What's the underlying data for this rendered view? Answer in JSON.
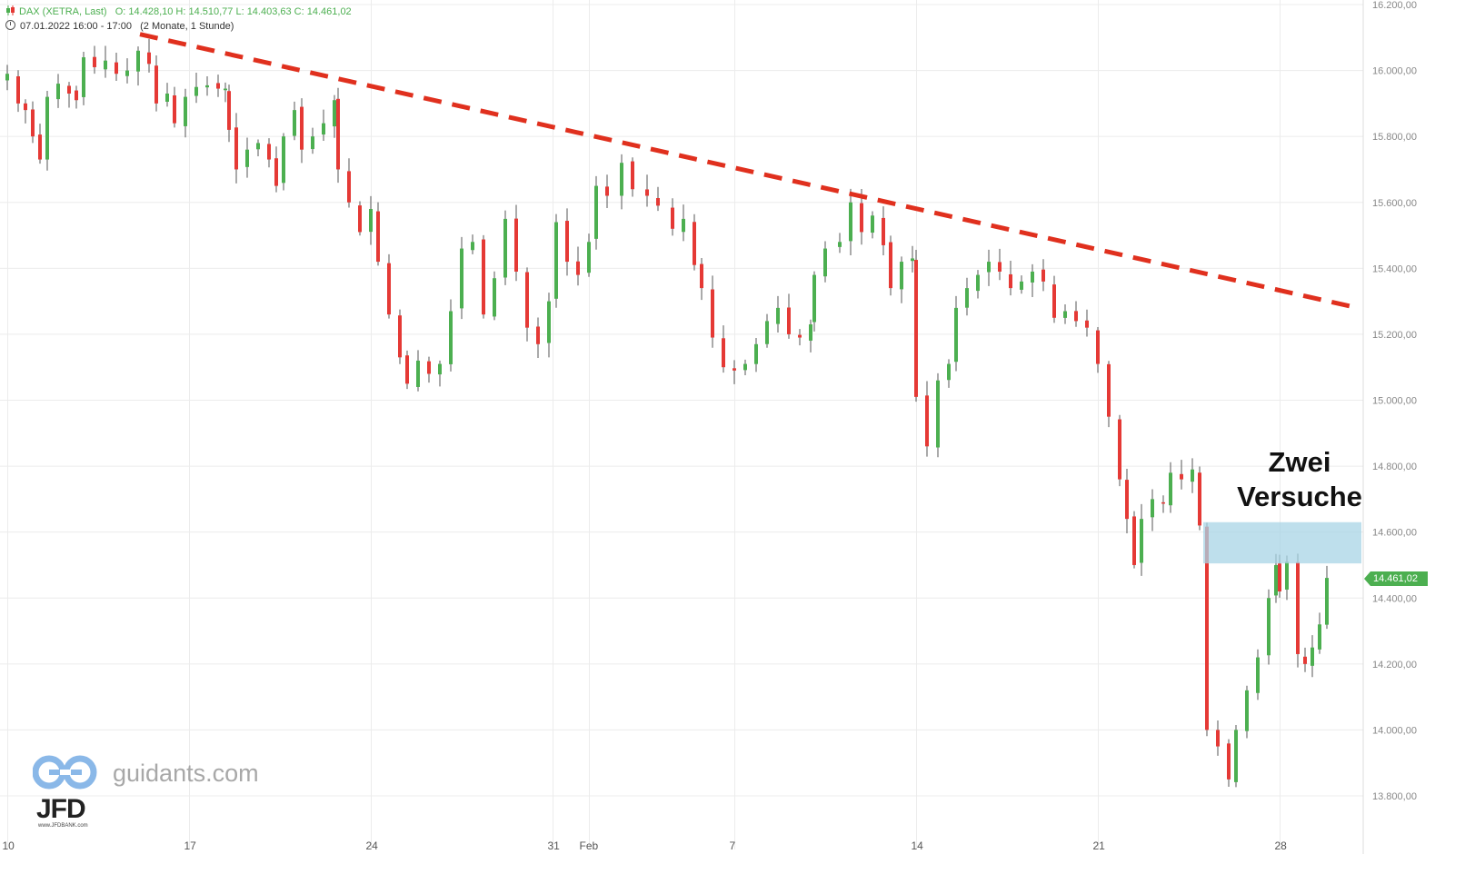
{
  "header": {
    "instrument": "DAX (XETRA, Last)",
    "ohlc": "O: 14.428,10  H: 14.510,77  L: 14.403,63  C: 14.461,02",
    "period": "07.01.2022 16:00 - 17:00",
    "range": "(2 Monate, 1 Stunde)"
  },
  "annotation": {
    "line1": "Zwei",
    "line2": "Versuche"
  },
  "last_price_label": "14.461,02",
  "watermark": {
    "site": "guidants.com",
    "brand": "JFD",
    "brand_sub": "www.JFDBANK.com"
  },
  "colors": {
    "up": "#4caf50",
    "down": "#e53935",
    "trend": "#e0301e",
    "zone": "#a8d4e6",
    "grid": "#ececec"
  },
  "chart_data": {
    "type": "candlestick",
    "title": "",
    "y_axis": {
      "min": 13750,
      "max": 16200,
      "ticks": [
        16200,
        16000,
        15800,
        15600,
        15400,
        15200,
        15000,
        14800,
        14600,
        14400,
        14200,
        14000,
        13800
      ],
      "tick_labels": [
        "16.200,00",
        "16.000,00",
        "15.800,00",
        "15.600,00",
        "15.400,00",
        "15.200,00",
        "15.000,00",
        "14.800,00",
        "14.600,00",
        "14.400,00",
        "14.200,00",
        "14.000,00",
        "13.800,00"
      ],
      "position": "right"
    },
    "x_axis": {
      "ticks": [
        {
          "label": "10",
          "t": 0
        },
        {
          "label": "17",
          "t": 5
        },
        {
          "label": "24",
          "t": 10
        },
        {
          "label": "31",
          "t": 15
        },
        {
          "label": "Feb",
          "t": 16
        },
        {
          "label": "7",
          "t": 20
        },
        {
          "label": "14",
          "t": 25
        },
        {
          "label": "21",
          "t": 30
        },
        {
          "label": "28",
          "t": 35
        }
      ],
      "max_t": 37.3
    },
    "trendline": {
      "from": {
        "t": 3.65,
        "price": 16110
      },
      "to": {
        "t": 36.95,
        "price": 15285
      },
      "style": "dashed"
    },
    "zone": {
      "t_start": 32.9,
      "t_end": 37.25,
      "price_low": 14505,
      "price_high": 14630
    },
    "last_price": 14461.02,
    "closes": [
      {
        "t": 0.0,
        "c": 15990
      },
      {
        "t": 0.3,
        "c": 15900
      },
      {
        "t": 0.5,
        "c": 15880
      },
      {
        "t": 0.7,
        "c": 15800
      },
      {
        "t": 0.9,
        "c": 15730
      },
      {
        "t": 1.1,
        "c": 15920
      },
      {
        "t": 1.4,
        "c": 15960
      },
      {
        "t": 1.7,
        "c": 15930
      },
      {
        "t": 1.9,
        "c": 15910
      },
      {
        "t": 2.1,
        "c": 16040
      },
      {
        "t": 2.4,
        "c": 16010
      },
      {
        "t": 2.7,
        "c": 16030
      },
      {
        "t": 3.0,
        "c": 15990
      },
      {
        "t": 3.3,
        "c": 16000
      },
      {
        "t": 3.6,
        "c": 16060
      },
      {
        "t": 3.9,
        "c": 16020
      },
      {
        "t": 4.1,
        "c": 15900
      },
      {
        "t": 4.4,
        "c": 15930
      },
      {
        "t": 4.6,
        "c": 15840
      },
      {
        "t": 4.9,
        "c": 15920
      },
      {
        "t": 5.2,
        "c": 15950
      },
      {
        "t": 5.5,
        "c": 15955
      },
      {
        "t": 5.8,
        "c": 15945
      },
      {
        "t": 6.0,
        "c": 15945
      },
      {
        "t": 6.1,
        "c": 15820
      },
      {
        "t": 6.3,
        "c": 15700
      },
      {
        "t": 6.6,
        "c": 15760
      },
      {
        "t": 6.9,
        "c": 15780
      },
      {
        "t": 7.2,
        "c": 15730
      },
      {
        "t": 7.4,
        "c": 15650
      },
      {
        "t": 7.6,
        "c": 15800
      },
      {
        "t": 7.9,
        "c": 15880
      },
      {
        "t": 8.1,
        "c": 15760
      },
      {
        "t": 8.4,
        "c": 15800
      },
      {
        "t": 8.7,
        "c": 15840
      },
      {
        "t": 9.0,
        "c": 15910
      },
      {
        "t": 9.1,
        "c": 15700
      },
      {
        "t": 9.4,
        "c": 15600
      },
      {
        "t": 9.7,
        "c": 15510
      },
      {
        "t": 10.0,
        "c": 15580
      },
      {
        "t": 10.2,
        "c": 15420
      },
      {
        "t": 10.5,
        "c": 15260
      },
      {
        "t": 10.8,
        "c": 15130
      },
      {
        "t": 11.0,
        "c": 15050
      },
      {
        "t": 11.3,
        "c": 15120
      },
      {
        "t": 11.6,
        "c": 15080
      },
      {
        "t": 11.9,
        "c": 15110
      },
      {
        "t": 12.2,
        "c": 15270
      },
      {
        "t": 12.5,
        "c": 15460
      },
      {
        "t": 12.8,
        "c": 15480
      },
      {
        "t": 13.1,
        "c": 15260
      },
      {
        "t": 13.4,
        "c": 15370
      },
      {
        "t": 13.7,
        "c": 15550
      },
      {
        "t": 14.0,
        "c": 15390
      },
      {
        "t": 14.3,
        "c": 15220
      },
      {
        "t": 14.6,
        "c": 15170
      },
      {
        "t": 14.9,
        "c": 15300
      },
      {
        "t": 15.1,
        "c": 15540
      },
      {
        "t": 15.4,
        "c": 15420
      },
      {
        "t": 15.7,
        "c": 15380
      },
      {
        "t": 16.0,
        "c": 15480
      },
      {
        "t": 16.2,
        "c": 15650
      },
      {
        "t": 16.5,
        "c": 15620
      },
      {
        "t": 16.9,
        "c": 15720
      },
      {
        "t": 17.2,
        "c": 15640
      },
      {
        "t": 17.6,
        "c": 15620
      },
      {
        "t": 17.9,
        "c": 15590
      },
      {
        "t": 18.3,
        "c": 15520
      },
      {
        "t": 18.6,
        "c": 15550
      },
      {
        "t": 18.9,
        "c": 15410
      },
      {
        "t": 19.1,
        "c": 15340
      },
      {
        "t": 19.4,
        "c": 15190
      },
      {
        "t": 19.7,
        "c": 15100
      },
      {
        "t": 20.0,
        "c": 15090
      },
      {
        "t": 20.3,
        "c": 15110
      },
      {
        "t": 20.6,
        "c": 15170
      },
      {
        "t": 20.9,
        "c": 15240
      },
      {
        "t": 21.2,
        "c": 15280
      },
      {
        "t": 21.5,
        "c": 15200
      },
      {
        "t": 21.8,
        "c": 15190
      },
      {
        "t": 22.1,
        "c": 15230
      },
      {
        "t": 22.2,
        "c": 15380
      },
      {
        "t": 22.5,
        "c": 15460
      },
      {
        "t": 22.9,
        "c": 15480
      },
      {
        "t": 23.2,
        "c": 15600
      },
      {
        "t": 23.5,
        "c": 15510
      },
      {
        "t": 23.8,
        "c": 15560
      },
      {
        "t": 24.1,
        "c": 15470
      },
      {
        "t": 24.3,
        "c": 15340
      },
      {
        "t": 24.6,
        "c": 15420
      },
      {
        "t": 24.9,
        "c": 15430
      },
      {
        "t": 25.0,
        "c": 15010
      },
      {
        "t": 25.3,
        "c": 14860
      },
      {
        "t": 25.6,
        "c": 15060
      },
      {
        "t": 25.9,
        "c": 15110
      },
      {
        "t": 26.1,
        "c": 15280
      },
      {
        "t": 26.4,
        "c": 15340
      },
      {
        "t": 26.7,
        "c": 15380
      },
      {
        "t": 27.0,
        "c": 15420
      },
      {
        "t": 27.3,
        "c": 15390
      },
      {
        "t": 27.6,
        "c": 15340
      },
      {
        "t": 27.9,
        "c": 15360
      },
      {
        "t": 28.2,
        "c": 15390
      },
      {
        "t": 28.5,
        "c": 15360
      },
      {
        "t": 28.8,
        "c": 15250
      },
      {
        "t": 29.1,
        "c": 15270
      },
      {
        "t": 29.4,
        "c": 15240
      },
      {
        "t": 29.7,
        "c": 15220
      },
      {
        "t": 30.0,
        "c": 15110
      },
      {
        "t": 30.3,
        "c": 14950
      },
      {
        "t": 30.6,
        "c": 14760
      },
      {
        "t": 30.8,
        "c": 14640
      },
      {
        "t": 31.0,
        "c": 14500
      },
      {
        "t": 31.2,
        "c": 14640
      },
      {
        "t": 31.5,
        "c": 14700
      },
      {
        "t": 31.8,
        "c": 14690
      },
      {
        "t": 32.0,
        "c": 14780
      },
      {
        "t": 32.3,
        "c": 14760
      },
      {
        "t": 32.6,
        "c": 14790
      },
      {
        "t": 32.8,
        "c": 14620
      },
      {
        "t": 33.0,
        "c": 14000
      },
      {
        "t": 33.3,
        "c": 13950
      },
      {
        "t": 33.6,
        "c": 13850
      },
      {
        "t": 33.8,
        "c": 14000
      },
      {
        "t": 34.1,
        "c": 14120
      },
      {
        "t": 34.4,
        "c": 14220
      },
      {
        "t": 34.7,
        "c": 14400
      },
      {
        "t": 34.9,
        "c": 14500
      },
      {
        "t": 35.0,
        "c": 14420
      },
      {
        "t": 35.2,
        "c": 14510
      },
      {
        "t": 35.5,
        "c": 14230
      },
      {
        "t": 35.7,
        "c": 14200
      },
      {
        "t": 35.9,
        "c": 14250
      },
      {
        "t": 36.1,
        "c": 14320
      },
      {
        "t": 36.3,
        "c": 14461
      }
    ]
  }
}
